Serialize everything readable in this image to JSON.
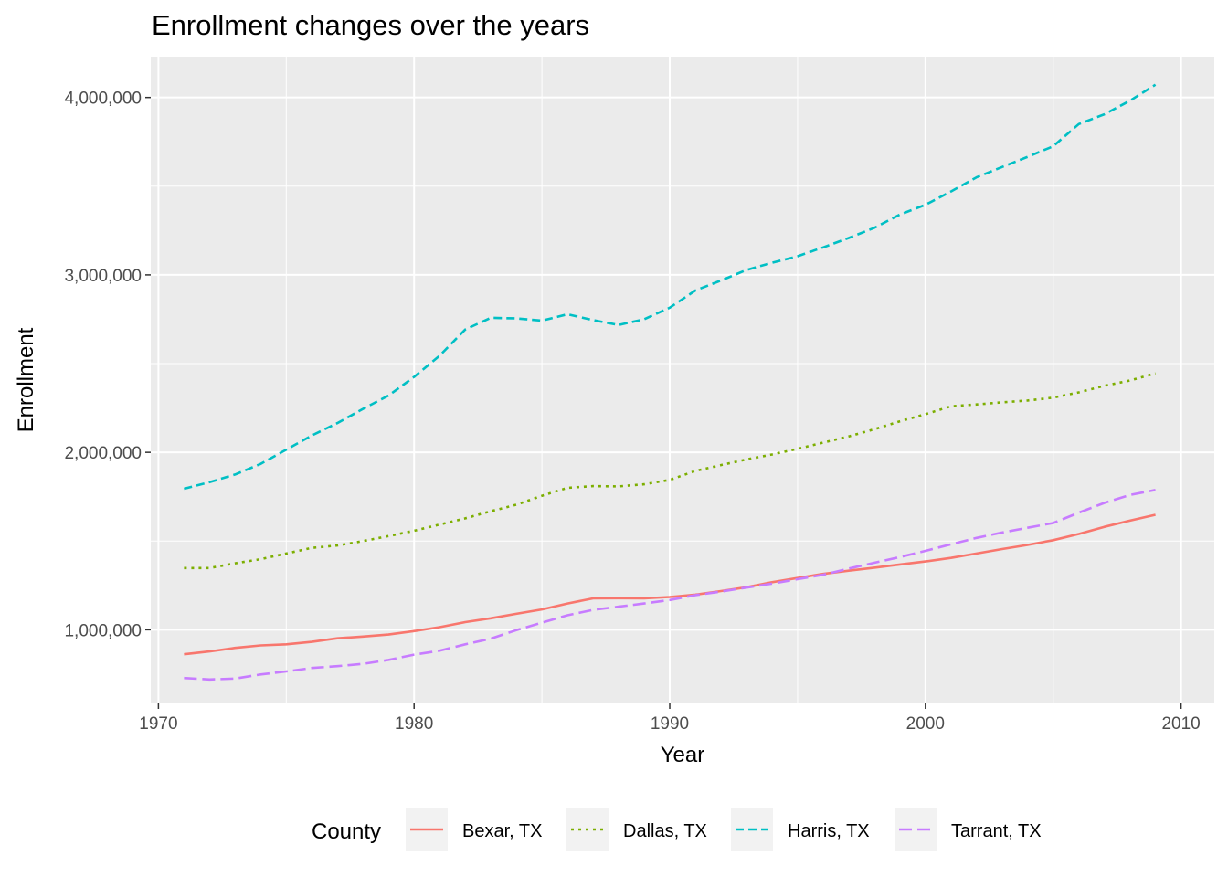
{
  "chart_data": {
    "type": "line",
    "title": "Enrollment changes over the years",
    "xlabel": "Year",
    "ylabel": "Enrollment",
    "xlim": [
      1969.7,
      2011.3
    ],
    "ylim": [
      585000,
      4230000
    ],
    "x_ticks": [
      1970,
      1980,
      1990,
      2000,
      2010
    ],
    "x_tick_labels": [
      "1970",
      "1980",
      "1990",
      "2000",
      "2010"
    ],
    "y_ticks": [
      1000000,
      2000000,
      3000000,
      4000000
    ],
    "y_tick_labels": [
      "1,000,000",
      "2,000,000",
      "3,000,000",
      "4,000,000"
    ],
    "grid": true,
    "legend_position": "bottom",
    "legend_title": "County",
    "x": [
      1971,
      1972,
      1973,
      1974,
      1975,
      1976,
      1977,
      1978,
      1979,
      1980,
      1981,
      1982,
      1983,
      1984,
      1985,
      1986,
      1987,
      1988,
      1989,
      1990,
      1991,
      1992,
      1993,
      1994,
      1995,
      1996,
      1997,
      1998,
      1999,
      2000,
      2001,
      2002,
      2003,
      2004,
      2005,
      2006,
      2007,
      2008,
      2009
    ],
    "series": [
      {
        "name": "Bexar, TX",
        "color": "#F8766D",
        "dash": "solid",
        "values": [
          862000,
          878000,
          898000,
          912000,
          918000,
          932000,
          952000,
          962000,
          973000,
          993000,
          1015000,
          1043000,
          1065000,
          1090000,
          1115000,
          1148000,
          1177000,
          1178000,
          1177000,
          1185000,
          1198000,
          1218000,
          1240000,
          1268000,
          1292000,
          1315000,
          1333000,
          1350000,
          1368000,
          1385000,
          1405000,
          1430000,
          1455000,
          1478000,
          1505000,
          1540000,
          1580000,
          1615000,
          1648000
        ]
      },
      {
        "name": "Dallas, TX",
        "color": "#7CAE00",
        "dash": "dotted",
        "values": [
          1348000,
          1348000,
          1375000,
          1398000,
          1430000,
          1462000,
          1475000,
          1500000,
          1528000,
          1558000,
          1593000,
          1628000,
          1668000,
          1705000,
          1755000,
          1800000,
          1810000,
          1808000,
          1820000,
          1845000,
          1895000,
          1928000,
          1960000,
          1988000,
          2020000,
          2055000,
          2090000,
          2130000,
          2175000,
          2215000,
          2260000,
          2270000,
          2282000,
          2292000,
          2308000,
          2338000,
          2375000,
          2405000,
          2445000
        ]
      },
      {
        "name": "Harris, TX",
        "color": "#00BFC4",
        "dash": "dashed",
        "values": [
          1795000,
          1832000,
          1875000,
          1935000,
          2015000,
          2095000,
          2165000,
          2245000,
          2320000,
          2425000,
          2545000,
          2692000,
          2758000,
          2755000,
          2742000,
          2778000,
          2745000,
          2718000,
          2750000,
          2815000,
          2912000,
          2968000,
          3028000,
          3068000,
          3105000,
          3155000,
          3208000,
          3265000,
          3340000,
          3395000,
          3470000,
          3550000,
          3608000,
          3665000,
          3725000,
          3850000,
          3905000,
          3982000,
          4072000
        ]
      },
      {
        "name": "Tarrant, TX",
        "color": "#C77CFF",
        "dash": "longdash",
        "values": [
          728000,
          720000,
          725000,
          748000,
          765000,
          785000,
          795000,
          808000,
          830000,
          860000,
          882000,
          918000,
          950000,
          998000,
          1040000,
          1082000,
          1112000,
          1130000,
          1148000,
          1168000,
          1195000,
          1215000,
          1238000,
          1260000,
          1285000,
          1310000,
          1345000,
          1378000,
          1410000,
          1445000,
          1482000,
          1518000,
          1548000,
          1575000,
          1602000,
          1660000,
          1715000,
          1760000,
          1788000
        ]
      }
    ]
  }
}
